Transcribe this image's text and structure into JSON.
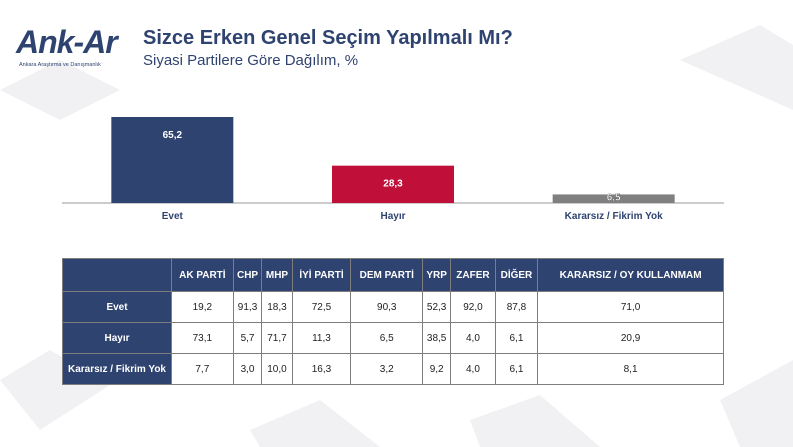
{
  "logo": {
    "name": "Ank-Ar",
    "tagline": "Ankara Araştırma ve Danışmanlık"
  },
  "header": {
    "title": "Sizce Erken Genel Seçim Yapılmalı Mı?",
    "subtitle": "Siyasi Partilere Göre Dağılım, %"
  },
  "colors": {
    "navy": "#2f4370",
    "red": "#c0103a",
    "gray": "#808080"
  },
  "chart_data": {
    "type": "bar",
    "title": "Sizce Erken Genel Seçim Yapılmalı Mı?",
    "subtitle": "Siyasi Partilere Göre Dağılım, %",
    "categories": [
      "Evet",
      "Hayır",
      "Kararsız / Fikrim Yok"
    ],
    "values": [
      65.2,
      28.3,
      6.5
    ],
    "value_labels": [
      "65,2",
      "28,3",
      "6,5"
    ],
    "bar_colors": [
      "#2f4370",
      "#c0103a",
      "#808080"
    ],
    "ylim": [
      0,
      70
    ],
    "grid": false,
    "legend": "none"
  },
  "table": {
    "columns": [
      "AK PARTİ",
      "CHP",
      "MHP",
      "İYİ PARTİ",
      "DEM PARTİ",
      "YRP",
      "ZAFER",
      "DİĞER",
      "KARARSIZ / OY KULLANMAM"
    ],
    "rows": [
      {
        "label": "Evet",
        "values": [
          "19,2",
          "91,3",
          "18,3",
          "72,5",
          "90,3",
          "52,3",
          "92,0",
          "87,8",
          "71,0"
        ]
      },
      {
        "label": "Hayır",
        "values": [
          "73,1",
          "5,7",
          "71,7",
          "11,3",
          "6,5",
          "38,5",
          "4,0",
          "6,1",
          "20,9"
        ]
      },
      {
        "label": "Kararsız / Fikrim Yok",
        "values": [
          "7,7",
          "3,0",
          "10,0",
          "16,3",
          "3,2",
          "9,2",
          "4,0",
          "6,1",
          "8,1"
        ]
      }
    ]
  }
}
